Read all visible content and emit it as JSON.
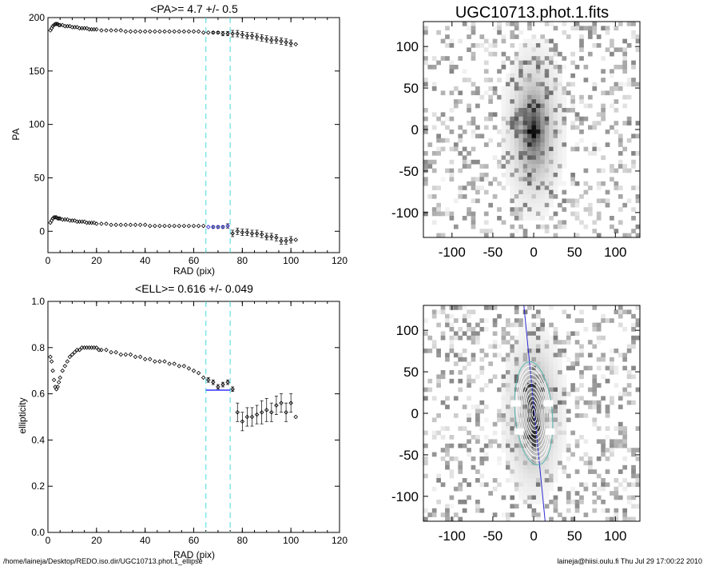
{
  "footer": {
    "path": "/home/laineja/Desktop/REDO.iso.dir/UGC10713.phot.1_ellipse",
    "user_stamp": "laineja@hiisi.oulu.fi  Thu Jul 29 17:00:22 2010"
  },
  "colors": {
    "marker": "#000000",
    "highlight": "#1a1acc",
    "mean_line": "#3333ff",
    "dashed": "#66e0e6",
    "contour": "#ffffff",
    "contour_outer": "#5ab8b0",
    "major_axis": "#2a2ad0"
  },
  "chart_data": [
    {
      "type": "scatter",
      "title": "<PA>=   4.7 +/-   0.5",
      "xlabel": "RAD (pix)",
      "ylabel": "PA",
      "xlim": [
        0,
        120
      ],
      "ylim": [
        -20,
        200
      ],
      "xticks": [
        0,
        20,
        40,
        60,
        80,
        100,
        120
      ],
      "yticks": [
        0,
        50,
        100,
        150,
        200
      ],
      "vlines_dashed": [
        65,
        75
      ],
      "series": [
        {
          "x": [
            1,
            1.5,
            2,
            2.5,
            3,
            3.5,
            4,
            4.5,
            5,
            6,
            7,
            8,
            9,
            10,
            11,
            12,
            13,
            14,
            15,
            16,
            17,
            18,
            19,
            20,
            22,
            24,
            26,
            28,
            30,
            32,
            34,
            36,
            38,
            40,
            42,
            44,
            46,
            48,
            50,
            52,
            54,
            56,
            58,
            60,
            62,
            64,
            66,
            68,
            70,
            72,
            74,
            76,
            78,
            80,
            82,
            84,
            86,
            88,
            90,
            92,
            94,
            96,
            98,
            100,
            102
          ],
          "y": [
            188,
            190,
            192,
            193,
            194,
            194,
            194,
            193,
            193,
            193,
            192,
            192,
            192,
            191,
            191,
            191,
            190,
            190,
            190,
            190,
            189,
            189,
            189,
            189,
            188,
            188,
            188,
            188,
            188,
            187,
            187,
            187,
            187,
            187,
            187,
            187,
            187,
            187,
            187,
            187,
            187,
            187,
            187,
            187,
            187,
            186,
            186,
            186,
            186,
            185,
            185,
            185,
            185,
            184,
            183,
            183,
            182,
            181,
            180,
            179,
            179,
            178,
            177,
            176,
            175
          ],
          "err": [
            0,
            0,
            0,
            0,
            0,
            0,
            0,
            0,
            0,
            0,
            0,
            0,
            0,
            0,
            0,
            0,
            0,
            0,
            0,
            0,
            0,
            0,
            0,
            0,
            0,
            0,
            0,
            0,
            0,
            0,
            0,
            0,
            0,
            0,
            0,
            0,
            0,
            0,
            0,
            0,
            0,
            0,
            0,
            0,
            0,
            0,
            0,
            1,
            1,
            2,
            2,
            3,
            3,
            3,
            3,
            3,
            3,
            3,
            3,
            3,
            3,
            3,
            3,
            3,
            0
          ]
        },
        {
          "x": [
            1,
            1.5,
            2,
            2.5,
            3,
            3.5,
            4,
            4.5,
            5,
            6,
            7,
            8,
            9,
            10,
            11,
            12,
            13,
            14,
            15,
            16,
            17,
            18,
            19,
            20,
            22,
            24,
            26,
            28,
            30,
            32,
            34,
            36,
            38,
            40,
            42,
            44,
            46,
            48,
            50,
            52,
            54,
            56,
            58,
            60,
            62,
            64,
            66,
            68,
            70,
            72,
            74,
            76,
            78,
            80,
            82,
            84,
            86,
            88,
            90,
            92,
            94,
            96,
            98,
            100,
            102
          ],
          "y": [
            8,
            10,
            12,
            13,
            13,
            13,
            12,
            12,
            12,
            11,
            11,
            11,
            10,
            10,
            10,
            9,
            9,
            9,
            9,
            8,
            8,
            8,
            8,
            7,
            7,
            7,
            6,
            6,
            6,
            6,
            6,
            6,
            6,
            6,
            5,
            5,
            5,
            5,
            5,
            5,
            5,
            5,
            5,
            5,
            5,
            5,
            4,
            4,
            4,
            4,
            5,
            -2,
            0,
            -1,
            -1,
            -2,
            -2,
            -3,
            -5,
            -5,
            -6,
            -9,
            -9,
            -8,
            -8
          ],
          "err": [
            0,
            0,
            0,
            0,
            0,
            0,
            0,
            0,
            0,
            0,
            0,
            0,
            0,
            0,
            0,
            0,
            0,
            0,
            0,
            0,
            0,
            0,
            0,
            0,
            0,
            0,
            0,
            0,
            0,
            0,
            0,
            0,
            0,
            0,
            0,
            0,
            0,
            0,
            0,
            0,
            0,
            0,
            0,
            0,
            0,
            0,
            0,
            1,
            1,
            1,
            2,
            3,
            3,
            3,
            3,
            3,
            3,
            3,
            3,
            3,
            3,
            3,
            3,
            3,
            0
          ]
        }
      ],
      "highlight_x": [
        66,
        75
      ]
    },
    {
      "type": "scatter",
      "title": "<ELL>= 0.616 +/-   0.049",
      "xlabel": "RAD (pix)",
      "ylabel": "ellipticity",
      "xlim": [
        0,
        120
      ],
      "ylim": [
        0.0,
        1.0
      ],
      "xticks": [
        0,
        20,
        40,
        60,
        80,
        100,
        120
      ],
      "yticks": [
        0.0,
        0.2,
        0.4,
        0.6,
        0.8,
        1.0
      ],
      "yticklabels": [
        "0.0",
        "0.2",
        "0.4",
        "0.6",
        "0.8",
        "1.0"
      ],
      "vlines_dashed": [
        65,
        75
      ],
      "mean_line": {
        "value": 0.616,
        "x": [
          65,
          75
        ]
      },
      "series": [
        {
          "x": [
            1,
            1.5,
            2,
            2.5,
            3,
            3.5,
            4,
            4.5,
            5,
            6,
            7,
            8,
            9,
            10,
            11,
            12,
            13,
            14,
            15,
            16,
            17,
            18,
            19,
            20,
            21,
            22,
            24,
            26,
            28,
            30,
            32,
            34,
            36,
            38,
            40,
            42,
            44,
            46,
            48,
            50,
            52,
            54,
            56,
            58,
            60,
            62,
            64,
            66,
            68,
            70,
            72,
            74,
            76,
            78,
            80,
            82,
            84,
            86,
            88,
            90,
            92,
            94,
            96,
            98,
            100,
            102
          ],
          "y": [
            0.76,
            0.74,
            0.7,
            0.66,
            0.63,
            0.62,
            0.63,
            0.65,
            0.67,
            0.7,
            0.72,
            0.74,
            0.76,
            0.77,
            0.78,
            0.79,
            0.79,
            0.8,
            0.8,
            0.8,
            0.8,
            0.8,
            0.8,
            0.8,
            0.79,
            0.79,
            0.79,
            0.78,
            0.78,
            0.77,
            0.77,
            0.77,
            0.76,
            0.76,
            0.75,
            0.75,
            0.74,
            0.74,
            0.74,
            0.73,
            0.73,
            0.72,
            0.72,
            0.71,
            0.7,
            0.69,
            0.67,
            0.66,
            0.65,
            0.63,
            0.64,
            0.65,
            0.62,
            0.52,
            0.48,
            0.5,
            0.5,
            0.51,
            0.52,
            0.53,
            0.52,
            0.55,
            0.56,
            0.52,
            0.56,
            0.5
          ],
          "err": [
            0,
            0,
            0,
            0,
            0,
            0,
            0,
            0,
            0,
            0,
            0,
            0,
            0,
            0,
            0,
            0,
            0,
            0,
            0,
            0,
            0,
            0,
            0,
            0,
            0,
            0,
            0,
            0,
            0,
            0,
            0,
            0,
            0,
            0,
            0,
            0,
            0,
            0,
            0,
            0,
            0,
            0,
            0,
            0,
            0,
            0,
            0,
            0.01,
            0.01,
            0.01,
            0.01,
            0.01,
            0.01,
            0.04,
            0.04,
            0.04,
            0.04,
            0.04,
            0.05,
            0.05,
            0.04,
            0.04,
            0.04,
            0.04,
            0.04,
            0
          ]
        }
      ]
    },
    {
      "type": "heatmap",
      "title": "UGC10713.phot.1.fits",
      "xlim": [
        -135,
        130
      ],
      "ylim": [
        -130,
        130
      ],
      "xticks": [
        -100,
        -50,
        0,
        50,
        100
      ],
      "yticks": [
        100,
        50,
        0,
        -50,
        -100
      ]
    },
    {
      "type": "heatmap",
      "title": "",
      "xlim": [
        -135,
        130
      ],
      "ylim": [
        -130,
        130
      ],
      "xticks": [
        -100,
        -50,
        0,
        50,
        100
      ],
      "yticks": [
        100,
        50,
        0,
        -50,
        -100
      ]
    }
  ]
}
